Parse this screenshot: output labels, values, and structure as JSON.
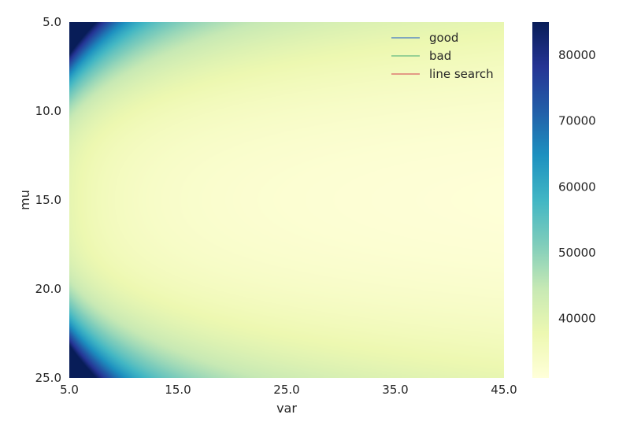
{
  "chart_data": {
    "type": "heatmap",
    "title": "",
    "xlabel": "var",
    "ylabel": "mu",
    "xlim": [
      5.0,
      45.0
    ],
    "ylim": [
      5.0,
      25.0
    ],
    "y_inverted": true,
    "x_ticks": [
      "5.0",
      "15.0",
      "25.0",
      "35.0",
      "45.0"
    ],
    "y_ticks": [
      "5.0",
      "10.0",
      "15.0",
      "20.0",
      "25.0"
    ],
    "colorbar": {
      "colormap": "YlGnBu",
      "min": 31000,
      "max": 85000,
      "ticks": [
        "40000",
        "50000",
        "60000",
        "70000",
        "80000"
      ],
      "tick_values": [
        40000,
        50000,
        60000,
        70000,
        80000
      ]
    },
    "field": {
      "description_values": "value(var, mu) approx = 31000 + 10000*((mu-15)/10)^2*4/var*10 ... minimum near mu=15, large var",
      "min_at": {
        "var": 45.0,
        "mu": 15.0
      },
      "sample_values": {
        "var_5_mu_5": 85000,
        "var_5_mu_15": 42000,
        "var_5_mu_25": 85000,
        "var_45_mu_5": 42000,
        "var_45_mu_15": 31000,
        "var_45_mu_25": 42000,
        "var_25_mu_15": 32000
      }
    },
    "legend": {
      "placement": "top-right",
      "entries": [
        {
          "name": "good",
          "color": "#7fa6bf"
        },
        {
          "name": "bad",
          "color": "#98d195"
        },
        {
          "name": "line search",
          "color": "#e39a85"
        }
      ]
    }
  }
}
